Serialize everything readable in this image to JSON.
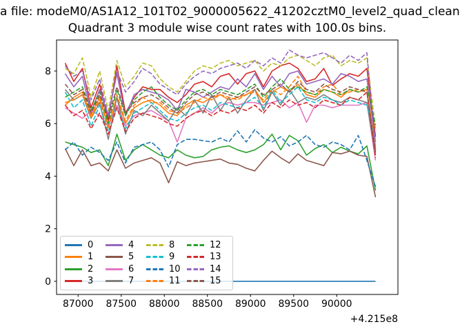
{
  "suptitle": "a file: modeM0/AS1A12_101T02_9000005622_41202cztM0_level2_quad_clean",
  "chart_data": {
    "type": "line",
    "title": "Quadrant 3 module wise count rates with 100.0s bins.",
    "xlabel": "",
    "ylabel": "",
    "x_offset_text": "+4.215e8",
    "x_ticks": [
      87000,
      87500,
      88000,
      88500,
      89000,
      89500,
      90000
    ],
    "y_ticks": [
      0,
      2,
      4,
      6,
      8
    ],
    "xlim": [
      86750,
      90710
    ],
    "ylim": [
      -0.5,
      9.18
    ],
    "grid": false,
    "legend_position": "lower left",
    "legend_columns": 4,
    "x": [
      86850,
      86950,
      87050,
      87150,
      87250,
      87350,
      87450,
      87550,
      87650,
      87750,
      87850,
      87950,
      88050,
      88150,
      88250,
      88350,
      88450,
      88550,
      88650,
      88750,
      88850,
      88950,
      89050,
      89150,
      89250,
      89350,
      89450,
      89550,
      89650,
      89750,
      89850,
      89950,
      90050,
      90150,
      90250,
      90350,
      90450
    ],
    "series": [
      {
        "name": "0",
        "color": "#1f77b4",
        "style": "solid",
        "values": [
          0,
          0,
          0,
          0,
          0,
          0,
          0,
          0,
          0,
          0,
          0,
          0,
          0,
          0,
          0,
          0,
          0,
          0,
          0,
          0,
          0,
          0,
          0,
          0,
          0,
          0,
          0,
          0,
          0,
          0,
          0,
          0,
          0,
          0,
          0,
          0,
          0
        ]
      },
      {
        "name": "1",
        "color": "#ff7f0e",
        "style": "solid",
        "values": [
          6.7,
          7.0,
          7.2,
          6.3,
          7.0,
          5.9,
          7.0,
          6.0,
          6.6,
          6.8,
          6.9,
          6.7,
          6.4,
          6.3,
          6.7,
          6.9,
          6.8,
          7.0,
          7.1,
          6.9,
          7.0,
          7.1,
          7.3,
          6.8,
          7.2,
          7.4,
          7.2,
          7.5,
          7.1,
          7.0,
          7.3,
          7.2,
          7.0,
          7.3,
          7.2,
          7.3,
          5.0
        ]
      },
      {
        "name": "2",
        "color": "#2ca02c",
        "style": "solid",
        "values": [
          5.3,
          5.2,
          5.1,
          4.9,
          5.0,
          4.4,
          5.6,
          4.6,
          5.0,
          5.2,
          5.0,
          4.8,
          4.7,
          5.0,
          4.8,
          4.7,
          4.75,
          5.0,
          5.1,
          5.15,
          5.0,
          4.9,
          5.0,
          5.2,
          5.6,
          5.0,
          5.55,
          5.35,
          4.8,
          5.05,
          5.2,
          4.9,
          5.1,
          4.95,
          4.85,
          5.15,
          3.45
        ]
      },
      {
        "name": "3",
        "color": "#d62728",
        "style": "solid",
        "values": [
          8.3,
          7.6,
          8.1,
          6.6,
          7.5,
          6.1,
          8.2,
          6.4,
          7.0,
          7.4,
          7.3,
          7.3,
          7.0,
          6.8,
          7.1,
          7.5,
          7.6,
          7.4,
          7.8,
          7.9,
          7.5,
          7.9,
          8.0,
          7.4,
          8.0,
          8.2,
          8.3,
          8.1,
          7.6,
          7.7,
          8.1,
          7.45,
          7.7,
          7.9,
          7.8,
          8.1,
          5.5
        ]
      },
      {
        "name": "4",
        "color": "#9467bd",
        "style": "solid",
        "values": [
          7.9,
          7.4,
          7.8,
          6.4,
          7.3,
          6.3,
          7.9,
          6.3,
          7.1,
          7.3,
          7.2,
          7.1,
          6.9,
          6.5,
          7.3,
          7.2,
          7.0,
          7.2,
          7.4,
          7.3,
          7.7,
          7.4,
          7.9,
          7.3,
          7.8,
          7.4,
          7.9,
          8.0,
          7.5,
          7.6,
          7.7,
          7.5,
          7.9,
          7.8,
          7.6,
          7.7,
          5.3
        ]
      },
      {
        "name": "5",
        "color": "#8c564b",
        "style": "solid",
        "values": [
          5.05,
          4.4,
          5.0,
          4.4,
          4.5,
          4.2,
          5.0,
          4.3,
          4.5,
          4.6,
          4.7,
          4.5,
          3.75,
          4.55,
          4.4,
          4.5,
          4.55,
          4.6,
          4.65,
          4.5,
          4.45,
          4.3,
          4.2,
          4.6,
          4.95,
          4.7,
          4.5,
          4.85,
          4.6,
          4.5,
          4.4,
          4.9,
          4.85,
          4.95,
          4.8,
          4.75,
          3.2
        ]
      },
      {
        "name": "6",
        "color": "#e377c2",
        "style": "solid",
        "values": [
          6.6,
          6.4,
          6.2,
          6.5,
          6.3,
          5.9,
          6.7,
          5.9,
          6.3,
          6.4,
          6.5,
          6.3,
          6.1,
          5.3,
          6.2,
          6.4,
          6.6,
          6.4,
          6.7,
          6.8,
          6.7,
          6.8,
          6.8,
          6.7,
          6.8,
          6.9,
          6.6,
          6.8,
          6.05,
          6.7,
          6.7,
          6.6,
          6.7,
          6.7,
          6.7,
          6.8,
          4.6
        ]
      },
      {
        "name": "7",
        "color": "#7f7f7f",
        "style": "solid",
        "values": [
          7.3,
          6.9,
          7.1,
          6.2,
          6.8,
          5.4,
          7.0,
          5.6,
          6.5,
          6.3,
          6.7,
          6.4,
          6.1,
          6.6,
          6.3,
          6.9,
          6.4,
          7.1,
          6.5,
          7.0,
          6.4,
          6.9,
          7.3,
          6.5,
          7.2,
          6.7,
          7.3,
          6.8,
          7.0,
          6.9,
          7.1,
          6.9,
          6.8,
          7.0,
          6.9,
          6.8,
          4.8
        ]
      },
      {
        "name": "8",
        "color": "#bcbd22",
        "style": "dashed",
        "values": [
          8.1,
          7.9,
          8.5,
          7.0,
          8.0,
          6.5,
          8.4,
          7.4,
          7.8,
          8.3,
          8.2,
          7.7,
          7.4,
          7.2,
          7.6,
          8.0,
          8.2,
          8.1,
          8.3,
          8.4,
          8.2,
          8.3,
          8.4,
          8.0,
          8.3,
          8.2,
          8.5,
          8.6,
          8.4,
          8.2,
          8.5,
          8.6,
          8.2,
          8.4,
          8.3,
          8.5,
          5.8
        ]
      },
      {
        "name": "9",
        "color": "#17becf",
        "style": "dashed",
        "values": [
          7.2,
          6.6,
          6.9,
          5.9,
          6.7,
          5.7,
          6.6,
          5.8,
          6.4,
          6.6,
          6.8,
          6.5,
          6.2,
          6.1,
          6.4,
          6.6,
          6.7,
          6.5,
          6.8,
          6.7,
          6.6,
          6.8,
          7.0,
          6.6,
          7.3,
          6.8,
          7.1,
          7.4,
          6.9,
          6.8,
          7.0,
          6.9,
          6.7,
          6.9,
          6.8,
          6.7,
          5.3
        ]
      },
      {
        "name": "10",
        "color": "#1f77b4",
        "style": "dashed",
        "values": [
          5.0,
          5.3,
          4.8,
          5.1,
          4.9,
          4.6,
          5.3,
          4.5,
          5.1,
          5.2,
          5.3,
          5.0,
          4.35,
          5.2,
          5.4,
          5.4,
          5.35,
          5.3,
          5.45,
          5.3,
          5.72,
          5.3,
          5.77,
          5.45,
          5.3,
          5.5,
          5.15,
          5.3,
          5.55,
          5.2,
          5.1,
          5.3,
          5.2,
          5.0,
          5.55,
          4.6,
          3.6
        ]
      },
      {
        "name": "11",
        "color": "#ff7f0e",
        "style": "dashed",
        "values": [
          6.8,
          6.9,
          7.1,
          6.2,
          6.9,
          5.8,
          7.1,
          6.1,
          6.7,
          7.0,
          6.8,
          6.8,
          6.5,
          6.4,
          6.6,
          6.8,
          7.0,
          6.9,
          7.1,
          7.0,
          6.9,
          7.1,
          7.2,
          6.9,
          7.3,
          7.1,
          7.4,
          7.8,
          7.2,
          7.1,
          7.4,
          7.5,
          7.1,
          7.2,
          7.3,
          7.2,
          5.1
        ]
      },
      {
        "name": "12",
        "color": "#2ca02c",
        "style": "dashed",
        "values": [
          7.0,
          7.2,
          7.4,
          6.5,
          7.2,
          6.0,
          7.3,
          6.3,
          6.9,
          7.2,
          7.4,
          7.0,
          6.7,
          6.5,
          6.9,
          7.2,
          7.3,
          7.1,
          7.3,
          7.2,
          7.1,
          7.3,
          7.5,
          7.0,
          7.4,
          7.7,
          7.3,
          7.4,
          7.2,
          7.1,
          7.3,
          7.2,
          7.1,
          7.3,
          7.2,
          7.4,
          5.95
        ]
      },
      {
        "name": "13",
        "color": "#d62728",
        "style": "dashed",
        "values": [
          6.7,
          6.3,
          6.5,
          5.8,
          6.4,
          5.6,
          6.6,
          5.7,
          6.2,
          6.4,
          6.3,
          6.2,
          6.0,
          5.9,
          6.2,
          6.4,
          6.5,
          6.3,
          6.5,
          6.4,
          6.6,
          6.5,
          6.7,
          6.4,
          6.8,
          6.6,
          6.9,
          6.7,
          6.8,
          6.6,
          6.9,
          6.8,
          6.7,
          7.0,
          6.9,
          7.2,
          4.7
        ]
      },
      {
        "name": "14",
        "color": "#9467bd",
        "style": "dashed",
        "values": [
          8.2,
          7.8,
          8.0,
          6.9,
          7.7,
          6.3,
          8.0,
          7.2,
          7.6,
          8.1,
          7.9,
          7.5,
          7.3,
          7.1,
          7.5,
          7.8,
          8.0,
          7.9,
          8.1,
          8.2,
          8.3,
          8.1,
          8.4,
          8.2,
          8.5,
          8.3,
          8.8,
          8.6,
          8.5,
          8.6,
          8.7,
          8.5,
          8.3,
          8.6,
          8.4,
          8.7,
          5.0
        ]
      },
      {
        "name": "15",
        "color": "#8c564b",
        "style": "dashed",
        "values": [
          7.5,
          7.1,
          7.3,
          6.4,
          7.1,
          6.2,
          7.4,
          6.4,
          6.8,
          7.0,
          7.1,
          6.9,
          6.6,
          6.4,
          6.8,
          7.1,
          7.2,
          7.0,
          7.2,
          7.1,
          7.0,
          7.2,
          7.4,
          7.1,
          7.3,
          7.5,
          7.2,
          7.6,
          7.3,
          7.2,
          7.5,
          7.3,
          7.2,
          7.4,
          7.3,
          7.2,
          4.9
        ]
      }
    ]
  }
}
